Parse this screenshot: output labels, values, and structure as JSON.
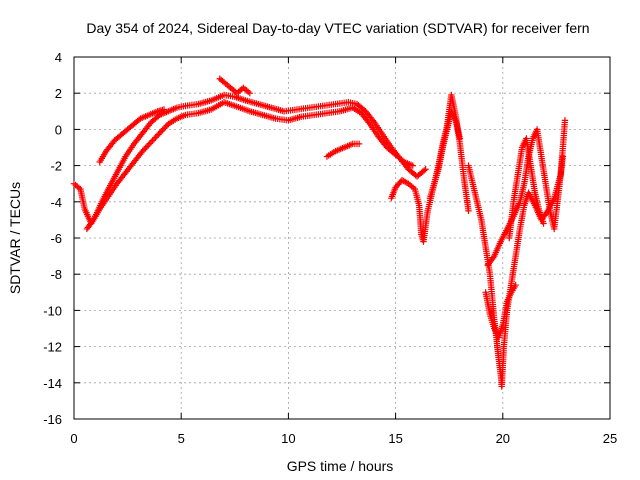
{
  "chart_data": {
    "type": "scatter",
    "title": "Day 354 of 2024, Sidereal Day-to-day VTEC variation (SDTVAR) for receiver fern",
    "xlabel": "GPS time / hours",
    "ylabel": "SDTVAR / TECUs",
    "xlim": [
      0,
      25
    ],
    "ylim": [
      -16,
      4
    ],
    "xticks": [
      0,
      5,
      10,
      15,
      20,
      25
    ],
    "yticks": [
      -16,
      -14,
      -12,
      -10,
      -8,
      -6,
      -4,
      -2,
      0,
      2,
      4
    ],
    "grid": true,
    "marker": "plus",
    "color": "#ff0000",
    "series": [
      {
        "values": [
          [
            0.0,
            -3.0
          ],
          [
            0.3,
            -3.3
          ],
          [
            0.5,
            -4.4
          ],
          [
            0.8,
            -5.2
          ],
          [
            1.0,
            -4.8
          ],
          [
            1.3,
            -4.0
          ],
          [
            1.6,
            -3.3
          ],
          [
            2.0,
            -2.4
          ],
          [
            2.4,
            -1.5
          ],
          [
            2.8,
            -0.8
          ],
          [
            3.2,
            -0.2
          ],
          [
            3.6,
            0.4
          ],
          [
            4.0,
            0.8
          ],
          [
            4.4,
            1.0
          ],
          [
            4.8,
            1.2
          ],
          [
            5.2,
            1.3
          ],
          [
            5.8,
            1.4
          ],
          [
            6.4,
            1.6
          ],
          [
            7.0,
            1.9
          ],
          [
            7.5,
            1.8
          ],
          [
            8.0,
            1.6
          ],
          [
            8.6,
            1.4
          ],
          [
            9.2,
            1.2
          ],
          [
            9.8,
            1.0
          ],
          [
            10.4,
            1.1
          ],
          [
            11.0,
            1.2
          ],
          [
            11.6,
            1.3
          ],
          [
            12.2,
            1.4
          ],
          [
            12.8,
            1.5
          ],
          [
            13.2,
            1.4
          ],
          [
            13.6,
            1.0
          ],
          [
            14.0,
            0.4
          ],
          [
            14.4,
            -0.3
          ],
          [
            14.8,
            -1.0
          ],
          [
            15.2,
            -1.6
          ],
          [
            15.6,
            -2.2
          ],
          [
            16.0,
            -2.6
          ],
          [
            16.4,
            -2.2
          ]
        ]
      },
      {
        "values": [
          [
            0.6,
            -5.5
          ],
          [
            0.9,
            -5.0
          ],
          [
            1.2,
            -4.4
          ],
          [
            1.6,
            -3.7
          ],
          [
            2.0,
            -3.0
          ],
          [
            2.4,
            -2.4
          ],
          [
            2.8,
            -1.8
          ],
          [
            3.2,
            -1.2
          ],
          [
            3.6,
            -0.7
          ],
          [
            4.0,
            -0.2
          ],
          [
            4.4,
            0.3
          ],
          [
            4.8,
            0.6
          ],
          [
            5.2,
            0.8
          ],
          [
            5.8,
            0.9
          ],
          [
            6.4,
            1.1
          ],
          [
            7.0,
            1.5
          ],
          [
            7.5,
            1.3
          ],
          [
            8.2,
            1.0
          ],
          [
            8.8,
            0.8
          ],
          [
            9.4,
            0.6
          ],
          [
            10.0,
            0.5
          ],
          [
            10.6,
            0.7
          ],
          [
            11.2,
            0.8
          ],
          [
            11.8,
            0.9
          ],
          [
            12.4,
            1.0
          ],
          [
            13.0,
            1.2
          ],
          [
            13.4,
            0.9
          ],
          [
            13.8,
            0.3
          ],
          [
            14.2,
            -0.4
          ],
          [
            14.6,
            -1.0
          ],
          [
            15.0,
            -1.4
          ],
          [
            15.4,
            -1.8
          ],
          [
            15.8,
            -2.0
          ]
        ]
      },
      {
        "values": [
          [
            1.2,
            -1.8
          ],
          [
            1.5,
            -1.2
          ],
          [
            1.9,
            -0.6
          ],
          [
            2.3,
            -0.2
          ],
          [
            2.7,
            0.2
          ],
          [
            3.1,
            0.6
          ],
          [
            3.5,
            0.8
          ],
          [
            3.9,
            1.0
          ],
          [
            4.2,
            1.1
          ]
        ]
      },
      {
        "values": [
          [
            6.8,
            2.8
          ],
          [
            7.0,
            2.6
          ],
          [
            7.3,
            2.3
          ],
          [
            7.6,
            2.0
          ],
          [
            7.9,
            2.3
          ],
          [
            8.2,
            2.0
          ]
        ]
      },
      {
        "values": [
          [
            11.8,
            -1.5
          ],
          [
            12.2,
            -1.2
          ],
          [
            12.6,
            -1.0
          ],
          [
            13.0,
            -0.8
          ],
          [
            13.3,
            -0.8
          ]
        ]
      },
      {
        "values": [
          [
            14.8,
            -3.8
          ],
          [
            15.0,
            -3.2
          ],
          [
            15.3,
            -2.8
          ],
          [
            15.6,
            -3.0
          ],
          [
            15.9,
            -3.3
          ],
          [
            16.1,
            -4.2
          ],
          [
            16.2,
            -5.8
          ],
          [
            16.3,
            -6.2
          ],
          [
            16.5,
            -4.5
          ],
          [
            16.8,
            -3.0
          ],
          [
            17.0,
            -2.2
          ],
          [
            17.2,
            -1.0
          ],
          [
            17.4,
            0.0
          ],
          [
            17.6,
            1.0
          ],
          [
            17.8,
            0.5
          ],
          [
            18.0,
            -0.5
          ]
        ]
      },
      {
        "values": [
          [
            16.6,
            -3.8
          ],
          [
            16.8,
            -3.0
          ],
          [
            17.0,
            -2.0
          ],
          [
            17.2,
            -0.8
          ],
          [
            17.4,
            0.2
          ],
          [
            17.6,
            1.9
          ],
          [
            17.8,
            0.8
          ],
          [
            18.0,
            -0.8
          ],
          [
            18.2,
            -2.8
          ],
          [
            18.4,
            -4.5
          ]
        ]
      },
      {
        "values": [
          [
            18.4,
            -2.0
          ],
          [
            18.7,
            -3.5
          ],
          [
            19.0,
            -5.0
          ],
          [
            19.2,
            -6.5
          ],
          [
            19.4,
            -8.0
          ],
          [
            19.5,
            -9.2
          ],
          [
            19.6,
            -10.5
          ],
          [
            19.7,
            -11.5
          ],
          [
            19.8,
            -12.6
          ],
          [
            19.9,
            -13.5
          ],
          [
            19.95,
            -14.2
          ],
          [
            20.05,
            -12.0
          ],
          [
            20.2,
            -10.0
          ],
          [
            20.4,
            -8.5
          ],
          [
            20.6,
            -7.0
          ],
          [
            20.8,
            -5.5
          ],
          [
            21.0,
            -4.2
          ],
          [
            21.2,
            -3.5
          ],
          [
            21.5,
            -4.2
          ],
          [
            21.8,
            -5.0
          ],
          [
            22.1,
            -4.5
          ],
          [
            22.4,
            -3.8
          ],
          [
            22.7,
            -2.5
          ],
          [
            22.9,
            0.5
          ]
        ]
      },
      {
        "values": [
          [
            19.2,
            -9.0
          ],
          [
            19.4,
            -10.2
          ],
          [
            19.6,
            -11.0
          ],
          [
            19.8,
            -11.5
          ],
          [
            20.0,
            -10.8
          ],
          [
            20.2,
            -9.5
          ],
          [
            20.4,
            -9.0
          ],
          [
            20.6,
            -8.6
          ]
        ]
      },
      {
        "values": [
          [
            19.3,
            -7.5
          ],
          [
            19.6,
            -7.0
          ],
          [
            19.9,
            -6.2
          ],
          [
            20.2,
            -5.5
          ],
          [
            20.5,
            -4.8
          ],
          [
            20.8,
            -4.0
          ],
          [
            21.0,
            -3.0
          ],
          [
            21.2,
            -1.5
          ],
          [
            21.4,
            -0.5
          ],
          [
            21.6,
            0.0
          ],
          [
            21.8,
            -1.5
          ],
          [
            22.0,
            -3.0
          ],
          [
            22.2,
            -4.5
          ],
          [
            22.4,
            -5.5
          ],
          [
            22.6,
            -3.5
          ],
          [
            22.8,
            -1.5
          ]
        ]
      },
      {
        "values": [
          [
            20.3,
            -6.0
          ],
          [
            20.5,
            -4.0
          ],
          [
            20.7,
            -2.5
          ],
          [
            20.9,
            -1.0
          ],
          [
            21.1,
            -0.5
          ],
          [
            21.3,
            -2.0
          ],
          [
            21.5,
            -3.5
          ],
          [
            21.7,
            -4.5
          ],
          [
            21.9,
            -5.2
          ]
        ]
      }
    ]
  }
}
